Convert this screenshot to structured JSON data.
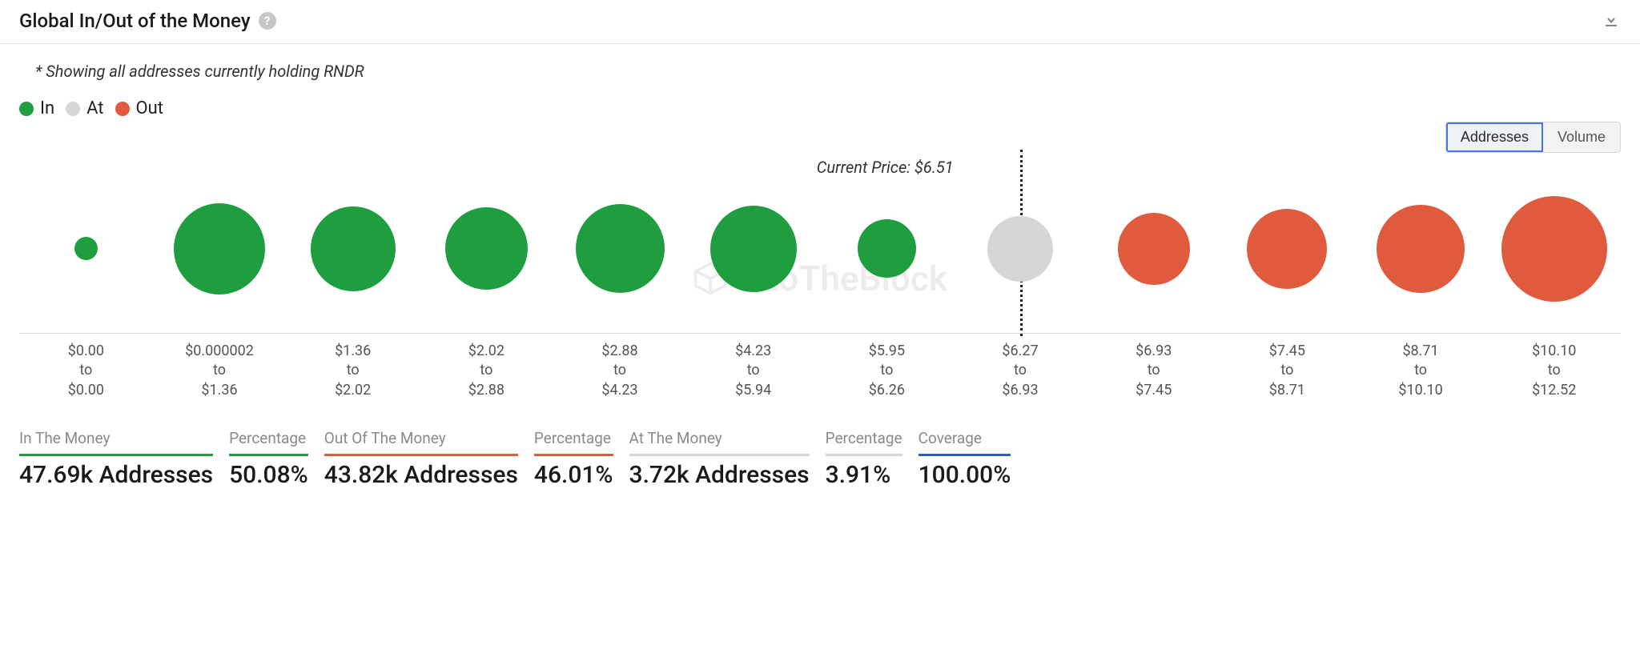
{
  "header": {
    "title": "Global In/Out of the Money"
  },
  "subtitle": "* Showing all addresses currently holding RNDR",
  "legend": {
    "items": [
      {
        "label": "In",
        "color": "#1e9e3e"
      },
      {
        "label": "At",
        "color": "#d6d6d6"
      },
      {
        "label": "Out",
        "color": "#e05a3e"
      }
    ]
  },
  "toggle": {
    "options": [
      "Addresses",
      "Volume"
    ],
    "active": "Addresses"
  },
  "watermark": "IntoTheBlock",
  "chart": {
    "type": "bubble-row",
    "currentPrice": {
      "label": "Current Price: $6.51",
      "afterIndex": 6
    },
    "priceLineIndex": 7,
    "maxDiameter": 132,
    "colors": {
      "in": "#1e9e3e",
      "at": "#d6d6d6",
      "out": "#e05a3e"
    },
    "buckets": [
      {
        "from": "$0.00",
        "to": "$0.00",
        "state": "in",
        "size": 0.22
      },
      {
        "from": "$0.000002",
        "to": "$1.36",
        "state": "in",
        "size": 0.86
      },
      {
        "from": "$1.36",
        "to": "$2.02",
        "state": "in",
        "size": 0.8
      },
      {
        "from": "$2.02",
        "to": "$2.88",
        "state": "in",
        "size": 0.78
      },
      {
        "from": "$2.88",
        "to": "$4.23",
        "state": "in",
        "size": 0.84
      },
      {
        "from": "$4.23",
        "to": "$5.94",
        "state": "in",
        "size": 0.82
      },
      {
        "from": "$5.95",
        "to": "$6.26",
        "state": "in",
        "size": 0.55
      },
      {
        "from": "$6.27",
        "to": "$6.93",
        "state": "at",
        "size": 0.62
      },
      {
        "from": "$6.93",
        "to": "$7.45",
        "state": "out",
        "size": 0.68
      },
      {
        "from": "$7.45",
        "to": "$8.71",
        "state": "out",
        "size": 0.76
      },
      {
        "from": "$8.71",
        "to": "$10.10",
        "state": "out",
        "size": 0.83
      },
      {
        "from": "$10.10",
        "to": "$12.52",
        "state": "out",
        "size": 1.0
      }
    ]
  },
  "stats": [
    {
      "label": "In The Money",
      "value": "47.69k Addresses",
      "underline": "#1e9e3e"
    },
    {
      "label": "Percentage",
      "value": "50.08%",
      "underline": "#1e9e3e"
    },
    {
      "label": "Out Of The Money",
      "value": "43.82k Addresses",
      "underline": "#e05a3e"
    },
    {
      "label": "Percentage",
      "value": "46.01%",
      "underline": "#e05a3e"
    },
    {
      "label": "At The Money",
      "value": "3.72k Addresses",
      "underline": "#d6d6d6"
    },
    {
      "label": "Percentage",
      "value": "3.91%",
      "underline": "#d6d6d6"
    },
    {
      "label": "Coverage",
      "value": "100.00%",
      "underline": "#2a5bd7"
    }
  ]
}
